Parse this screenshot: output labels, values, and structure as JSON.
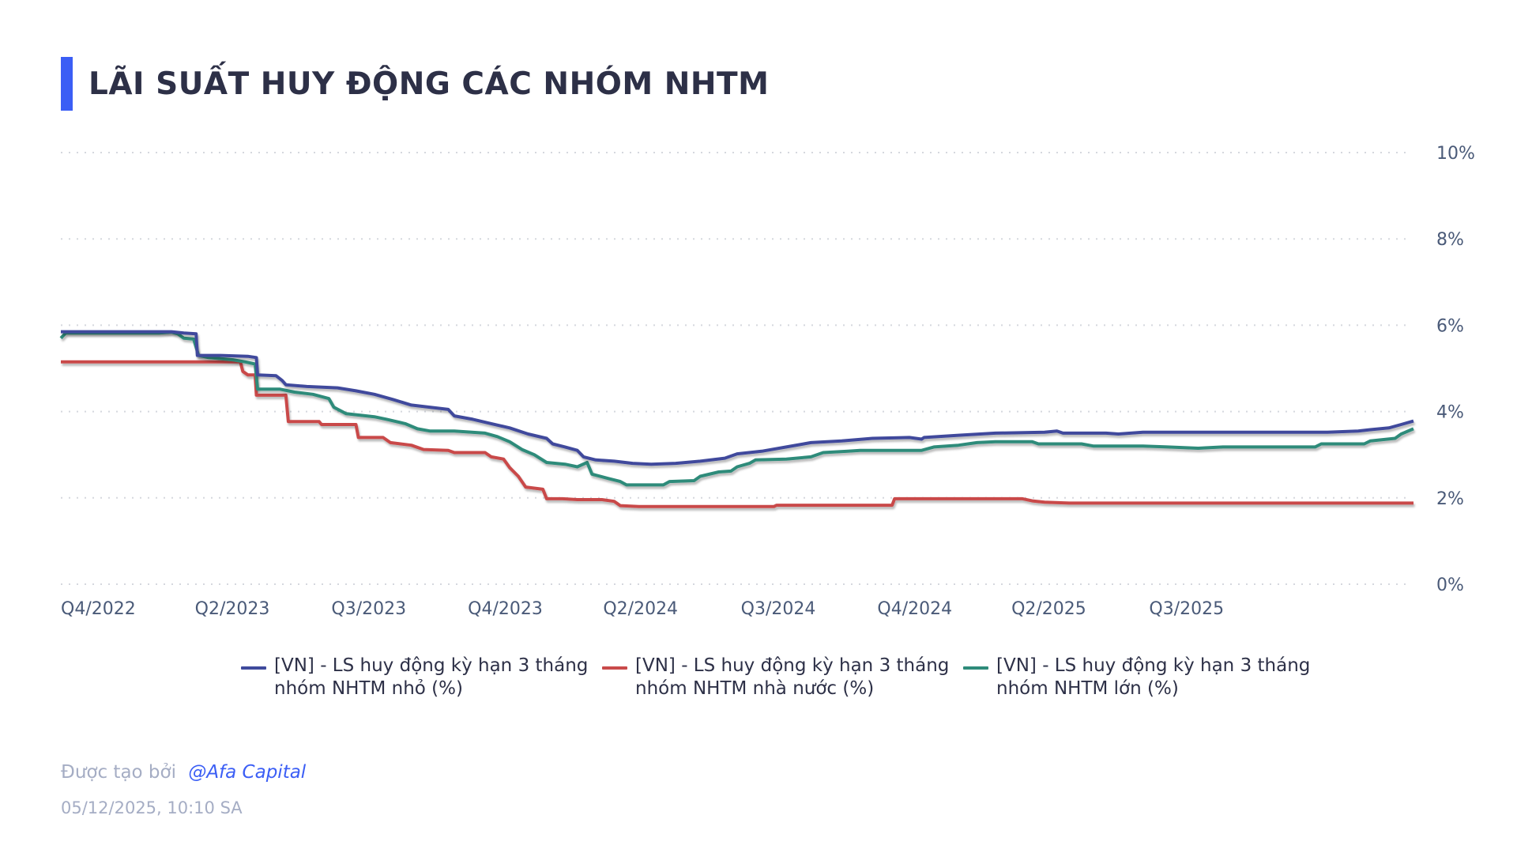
{
  "header": {
    "title": "LÃI SUẤT HUY ĐỘNG CÁC NHÓM NHTM",
    "accent_color": "#3b5ef5"
  },
  "footer": {
    "created_by_label": "Được tạo bởi",
    "author": "@Afa Capital",
    "timestamp": "05/12/2025, 10:10 SA"
  },
  "legend": [
    {
      "label": "[VN] - LS huy động kỳ hạn 3 tháng nhóm NHTM nhỏ (%)",
      "line1": "[VN] - LS huy động kỳ hạn 3 tháng",
      "line2": "nhóm NHTM nhỏ (%)",
      "color": "#3f4a9c"
    },
    {
      "label": "[VN] - LS huy động kỳ hạn 3 tháng nhóm NHTM nhà nước (%)",
      "line1": "[VN] - LS huy động kỳ hạn 3 tháng",
      "line2": "nhóm NHTM nhà nước (%)",
      "color": "#c94a4a"
    },
    {
      "label": "[VN] - LS huy động kỳ hạn 3 tháng nhóm NHTM lớn (%)",
      "line1": "[VN] - LS huy động kỳ hạn 3 tháng",
      "line2": "nhóm NHTM lớn (%)",
      "color": "#2e8b7a"
    }
  ],
  "chart_data": {
    "type": "line",
    "title": "LÃI SUẤT HUY ĐỘNG CÁC NHÓM NHTM",
    "xlabel": "",
    "ylabel": "",
    "ylim": [
      0,
      10
    ],
    "yticks": [
      "0%",
      "2%",
      "4%",
      "6%",
      "8%",
      "10%"
    ],
    "ytick_values": [
      0,
      2,
      4,
      6,
      8,
      10
    ],
    "y_axis_position": "right",
    "grid": "horizontal dotted",
    "legend_position": "bottom",
    "xtick_labels": [
      "Q4/2022",
      "Q2/2023",
      "Q3/2023",
      "Q4/2023",
      "Q2/2024",
      "Q3/2024",
      "Q4/2024",
      "Q2/2025",
      "Q3/2025"
    ],
    "xtick_positions": [
      0.0,
      0.109,
      0.22,
      0.331,
      0.441,
      0.553,
      0.664,
      0.773,
      0.885
    ],
    "x_note": "x is fraction of plot width (0 = Q4/2022 start, 1 = latest point, early Dec 2025)",
    "series": [
      {
        "name": "[VN] - LS huy động kỳ hạn 3 tháng nhóm NHTM nhỏ (%)",
        "color": "#3f4a9c",
        "points": [
          [
            0.0,
            5.85
          ],
          [
            0.09,
            5.85
          ],
          [
            0.1,
            5.82
          ],
          [
            0.11,
            5.8
          ],
          [
            0.111,
            5.3
          ],
          [
            0.13,
            5.3
          ],
          [
            0.152,
            5.28
          ],
          [
            0.159,
            5.25
          ],
          [
            0.16,
            4.85
          ],
          [
            0.175,
            4.83
          ],
          [
            0.18,
            4.72
          ],
          [
            0.183,
            4.62
          ],
          [
            0.2,
            4.58
          ],
          [
            0.225,
            4.55
          ],
          [
            0.24,
            4.48
          ],
          [
            0.255,
            4.4
          ],
          [
            0.27,
            4.28
          ],
          [
            0.285,
            4.15
          ],
          [
            0.3,
            4.1
          ],
          [
            0.315,
            4.05
          ],
          [
            0.32,
            3.9
          ],
          [
            0.335,
            3.82
          ],
          [
            0.35,
            3.72
          ],
          [
            0.365,
            3.62
          ],
          [
            0.38,
            3.48
          ],
          [
            0.395,
            3.38
          ],
          [
            0.4,
            3.25
          ],
          [
            0.41,
            3.18
          ],
          [
            0.42,
            3.1
          ],
          [
            0.425,
            2.95
          ],
          [
            0.435,
            2.88
          ],
          [
            0.45,
            2.85
          ],
          [
            0.465,
            2.8
          ],
          [
            0.48,
            2.78
          ],
          [
            0.5,
            2.8
          ],
          [
            0.52,
            2.85
          ],
          [
            0.54,
            2.92
          ],
          [
            0.55,
            3.02
          ],
          [
            0.57,
            3.08
          ],
          [
            0.59,
            3.18
          ],
          [
            0.61,
            3.28
          ],
          [
            0.635,
            3.32
          ],
          [
            0.66,
            3.38
          ],
          [
            0.69,
            3.4
          ],
          [
            0.7,
            3.36
          ],
          [
            0.702,
            3.4
          ],
          [
            0.73,
            3.45
          ],
          [
            0.76,
            3.5
          ],
          [
            0.8,
            3.52
          ],
          [
            0.81,
            3.55
          ],
          [
            0.815,
            3.5
          ],
          [
            0.85,
            3.5
          ],
          [
            0.86,
            3.48
          ],
          [
            0.88,
            3.52
          ],
          [
            0.92,
            3.52
          ],
          [
            0.96,
            3.52
          ],
          [
            1.0,
            3.52
          ],
          [
            1.03,
            3.52
          ],
          [
            1.055,
            3.55
          ],
          [
            1.065,
            3.58
          ],
          [
            1.08,
            3.62
          ],
          [
            1.09,
            3.7
          ],
          [
            1.1,
            3.78
          ]
        ]
      },
      {
        "name": "[VN] - LS huy động kỳ hạn 3 tháng nhóm NHTM nhà nước (%)",
        "color": "#c94a4a",
        "points": [
          [
            0.0,
            5.15
          ],
          [
            0.146,
            5.15
          ],
          [
            0.148,
            4.93
          ],
          [
            0.152,
            4.85
          ],
          [
            0.158,
            4.85
          ],
          [
            0.159,
            4.38
          ],
          [
            0.183,
            4.38
          ],
          [
            0.185,
            3.77
          ],
          [
            0.21,
            3.77
          ],
          [
            0.212,
            3.7
          ],
          [
            0.24,
            3.7
          ],
          [
            0.242,
            3.4
          ],
          [
            0.262,
            3.4
          ],
          [
            0.268,
            3.28
          ],
          [
            0.285,
            3.22
          ],
          [
            0.295,
            3.12
          ],
          [
            0.315,
            3.1
          ],
          [
            0.32,
            3.05
          ],
          [
            0.345,
            3.05
          ],
          [
            0.35,
            2.95
          ],
          [
            0.36,
            2.9
          ],
          [
            0.365,
            2.7
          ],
          [
            0.372,
            2.5
          ],
          [
            0.378,
            2.25
          ],
          [
            0.392,
            2.2
          ],
          [
            0.395,
            1.98
          ],
          [
            0.408,
            1.98
          ],
          [
            0.42,
            1.96
          ],
          [
            0.44,
            1.96
          ],
          [
            0.45,
            1.92
          ],
          [
            0.455,
            1.82
          ],
          [
            0.47,
            1.8
          ],
          [
            0.56,
            1.8
          ],
          [
            0.58,
            1.8
          ],
          [
            0.582,
            1.83
          ],
          [
            0.62,
            1.83
          ],
          [
            0.65,
            1.83
          ],
          [
            0.676,
            1.83
          ],
          [
            0.678,
            1.98
          ],
          [
            0.73,
            1.98
          ],
          [
            0.75,
            1.98
          ],
          [
            0.782,
            1.98
          ],
          [
            0.79,
            1.93
          ],
          [
            0.8,
            1.9
          ],
          [
            0.82,
            1.88
          ],
          [
            0.9,
            1.88
          ],
          [
            1.0,
            1.88
          ],
          [
            1.1,
            1.88
          ]
        ]
      },
      {
        "name": "[VN] - LS huy động kỳ hạn 3 tháng nhóm NHTM lớn (%)",
        "color": "#2e8b7a",
        "points": [
          [
            0.0,
            5.7
          ],
          [
            0.004,
            5.82
          ],
          [
            0.08,
            5.82
          ],
          [
            0.09,
            5.84
          ],
          [
            0.095,
            5.8
          ],
          [
            0.1,
            5.7
          ],
          [
            0.108,
            5.68
          ],
          [
            0.112,
            5.3
          ],
          [
            0.12,
            5.25
          ],
          [
            0.14,
            5.2
          ],
          [
            0.15,
            5.15
          ],
          [
            0.158,
            5.1
          ],
          [
            0.16,
            4.52
          ],
          [
            0.178,
            4.52
          ],
          [
            0.19,
            4.45
          ],
          [
            0.205,
            4.4
          ],
          [
            0.218,
            4.3
          ],
          [
            0.222,
            4.1
          ],
          [
            0.232,
            3.95
          ],
          [
            0.255,
            3.88
          ],
          [
            0.265,
            3.82
          ],
          [
            0.28,
            3.72
          ],
          [
            0.29,
            3.6
          ],
          [
            0.3,
            3.55
          ],
          [
            0.32,
            3.55
          ],
          [
            0.345,
            3.5
          ],
          [
            0.355,
            3.42
          ],
          [
            0.365,
            3.3
          ],
          [
            0.375,
            3.12
          ],
          [
            0.385,
            3.0
          ],
          [
            0.395,
            2.82
          ],
          [
            0.41,
            2.78
          ],
          [
            0.42,
            2.72
          ],
          [
            0.428,
            2.82
          ],
          [
            0.432,
            2.55
          ],
          [
            0.445,
            2.45
          ],
          [
            0.455,
            2.38
          ],
          [
            0.46,
            2.3
          ],
          [
            0.49,
            2.3
          ],
          [
            0.495,
            2.38
          ],
          [
            0.515,
            2.4
          ],
          [
            0.52,
            2.5
          ],
          [
            0.535,
            2.6
          ],
          [
            0.545,
            2.62
          ],
          [
            0.55,
            2.72
          ],
          [
            0.56,
            2.8
          ],
          [
            0.565,
            2.88
          ],
          [
            0.59,
            2.9
          ],
          [
            0.61,
            2.95
          ],
          [
            0.62,
            3.05
          ],
          [
            0.64,
            3.08
          ],
          [
            0.65,
            3.1
          ],
          [
            0.7,
            3.1
          ],
          [
            0.71,
            3.18
          ],
          [
            0.73,
            3.22
          ],
          [
            0.745,
            3.28
          ],
          [
            0.76,
            3.3
          ],
          [
            0.79,
            3.3
          ],
          [
            0.795,
            3.25
          ],
          [
            0.83,
            3.25
          ],
          [
            0.84,
            3.2
          ],
          [
            0.88,
            3.2
          ],
          [
            0.9,
            3.18
          ],
          [
            0.925,
            3.15
          ],
          [
            0.945,
            3.18
          ],
          [
            1.0,
            3.18
          ],
          [
            1.02,
            3.18
          ],
          [
            1.025,
            3.25
          ],
          [
            1.06,
            3.25
          ],
          [
            1.065,
            3.32
          ],
          [
            1.085,
            3.38
          ],
          [
            1.09,
            3.48
          ],
          [
            1.1,
            3.6
          ]
        ]
      }
    ]
  }
}
